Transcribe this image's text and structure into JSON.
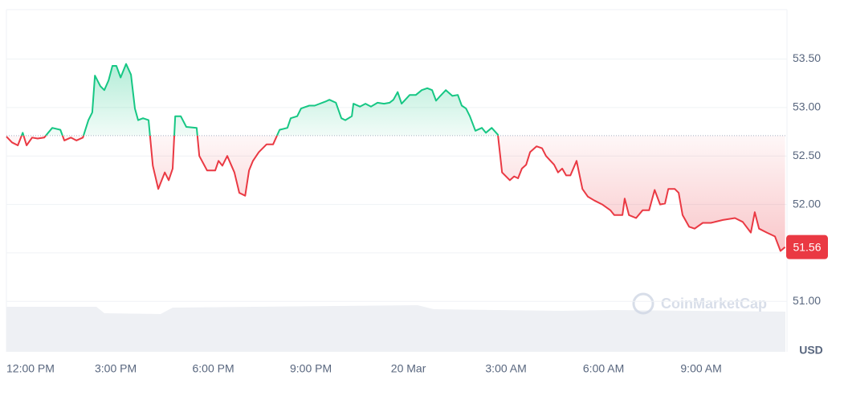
{
  "chart_data": {
    "type": "line",
    "x": [
      -0.36,
      -0.19,
      -0.01,
      0.14,
      0.26,
      0.43,
      0.6,
      0.8,
      1.05,
      1.3,
      1.42,
      1.62,
      1.79,
      1.99,
      2.16,
      2.28,
      2.36,
      2.53,
      2.65,
      2.78,
      2.9,
      3.02,
      3.15,
      3.32,
      3.47,
      3.59,
      3.69,
      3.84,
      4.01,
      4.14,
      4.31,
      4.51,
      4.63,
      4.75,
      4.83,
      5.0,
      5.17,
      5.49,
      5.57,
      5.81,
      6.06,
      6.16,
      6.28,
      6.43,
      6.65,
      6.8,
      6.98,
      7.1,
      7.22,
      7.4,
      7.64,
      7.84,
      8.04,
      8.28,
      8.38,
      8.58,
      8.7,
      8.95,
      9.12,
      9.44,
      9.57,
      9.77,
      9.94,
      10.06,
      10.26,
      10.31,
      10.51,
      10.68,
      10.85,
      11.05,
      11.25,
      11.42,
      11.54,
      11.67,
      11.79,
      12.04,
      12.23,
      12.41,
      12.58,
      12.73,
      12.85,
      12.98,
      13.15,
      13.35,
      13.52,
      13.64,
      13.77,
      13.89,
      14.06,
      14.26,
      14.38,
      14.56,
      14.75,
      14.88,
      15.12,
      15.25,
      15.37,
      15.49,
      15.62,
      15.74,
      15.94,
      16.11,
      16.23,
      16.48,
      16.6,
      16.73,
      16.85,
      16.98,
      17.17,
      17.35,
      17.52,
      17.72,
      17.96,
      18.21,
      18.33,
      18.58,
      18.65,
      18.78,
      19.0,
      19.2,
      19.4,
      19.57,
      19.74,
      19.89,
      19.99,
      20.19,
      20.31,
      20.43,
      20.63,
      20.8,
      21.05,
      21.3,
      21.67,
      22.04,
      22.28,
      22.53,
      22.65,
      22.78,
      23.02,
      23.27,
      23.44,
      23.58
    ],
    "series": [
      {
        "name": "Price",
        "values": [
          52.7,
          52.64,
          52.61,
          52.74,
          52.61,
          52.69,
          52.68,
          52.69,
          52.79,
          52.77,
          52.66,
          52.69,
          52.66,
          52.69,
          52.87,
          52.95,
          53.33,
          53.22,
          53.18,
          53.28,
          53.43,
          53.43,
          53.31,
          53.45,
          53.34,
          52.99,
          52.87,
          52.89,
          52.87,
          52.4,
          52.16,
          52.33,
          52.25,
          52.37,
          52.91,
          52.91,
          52.8,
          52.79,
          52.5,
          52.35,
          52.35,
          52.45,
          52.4,
          52.5,
          52.33,
          52.12,
          52.09,
          52.35,
          52.45,
          52.54,
          52.62,
          52.62,
          52.77,
          52.79,
          52.89,
          52.91,
          52.99,
          53.02,
          53.02,
          53.06,
          53.08,
          53.05,
          52.89,
          52.87,
          52.91,
          53.04,
          53.01,
          53.04,
          53.01,
          53.05,
          53.04,
          53.05,
          53.08,
          53.16,
          53.04,
          53.13,
          53.13,
          53.18,
          53.2,
          53.18,
          53.07,
          53.12,
          53.18,
          53.12,
          53.13,
          53.02,
          52.99,
          52.91,
          52.76,
          52.79,
          52.74,
          52.79,
          52.72,
          52.33,
          52.25,
          52.29,
          52.27,
          52.37,
          52.41,
          52.54,
          52.6,
          52.58,
          52.5,
          52.41,
          52.33,
          52.37,
          52.3,
          52.3,
          52.45,
          52.16,
          52.08,
          52.04,
          52.0,
          51.94,
          51.89,
          51.89,
          52.06,
          51.89,
          51.86,
          51.94,
          51.94,
          52.15,
          52.0,
          52.01,
          52.16,
          52.16,
          52.12,
          51.89,
          51.77,
          51.75,
          51.81,
          51.81,
          51.84,
          51.86,
          51.82,
          51.71,
          51.92,
          51.75,
          51.71,
          51.67,
          51.52,
          51.56
        ]
      }
    ],
    "baseline": 52.71,
    "up_color": "#16c784",
    "down_color": "#ea3943",
    "current_price": 51.56,
    "xlim": [
      -0.36,
      23.64
    ],
    "xticks": [
      {
        "value": 0,
        "label": "12:00 PM"
      },
      {
        "value": 3,
        "label": "3:00 PM"
      },
      {
        "value": 6,
        "label": "6:00 PM"
      },
      {
        "value": 9,
        "label": "9:00 PM"
      },
      {
        "value": 12,
        "label": "20 Mar"
      },
      {
        "value": 15,
        "label": "3:00 AM"
      },
      {
        "value": 18,
        "label": "6:00 AM"
      },
      {
        "value": 21,
        "label": "9:00 AM"
      }
    ],
    "ylim": [
      50.48,
      54.01
    ],
    "yticks": [
      {
        "value": 51,
        "label": "51.00"
      },
      {
        "value": 51.5,
        "label": "51.50"
      },
      {
        "value": 52,
        "label": "52.00"
      },
      {
        "value": 52.5,
        "label": "52.50"
      },
      {
        "value": 53,
        "label": "53.00"
      },
      {
        "value": 53.5,
        "label": "53.50"
      }
    ],
    "grid": true,
    "currency_label": "USD",
    "watermark": "CoinMarketCap"
  }
}
